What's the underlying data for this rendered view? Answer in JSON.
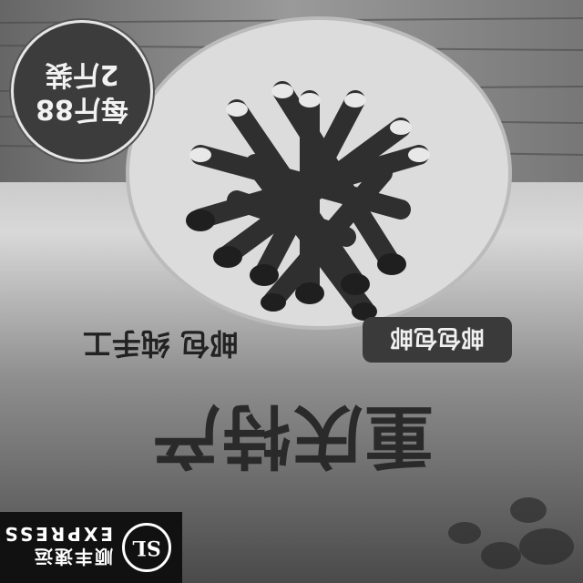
{
  "badge": {
    "line1": "每斤88",
    "line2": "2斤装"
  },
  "title": "重庆特产",
  "subtitle": "邮包 纯手工",
  "pill": "邮包包邮",
  "logo": {
    "mark": "SL",
    "cn": "顺丰速运",
    "en": "EXPRESS"
  },
  "colors": {
    "plate": "#e9e9e9",
    "wood": "#5f5f5f",
    "cover": "#cfcfcf"
  }
}
